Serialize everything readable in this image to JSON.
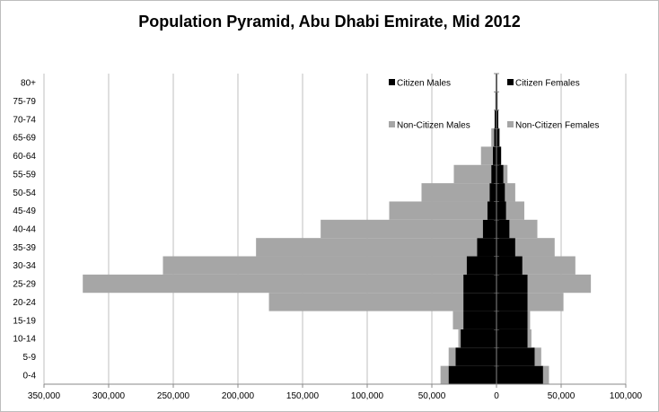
{
  "chart_data": {
    "type": "bar",
    "orientation": "horizontal-pyramid-stacked",
    "title": "Population Pyramid, Abu Dhabi Emirate, Mid 2012",
    "xlabel": "",
    "ylabel": "",
    "xlim": [
      -350000,
      100000
    ],
    "x_ticks": [
      -350000,
      -300000,
      -250000,
      -200000,
      -150000,
      -100000,
      -50000,
      0,
      50000,
      100000
    ],
    "x_tick_labels": [
      "350,000",
      "300,000",
      "250,000",
      "200,000",
      "150,000",
      "100,000",
      "50,000",
      "0",
      "50,000",
      "100,000"
    ],
    "grid": "vertical",
    "legend_position": "top-center",
    "categories": [
      "0-4",
      "5-9",
      "10-14",
      "15-19",
      "20-24",
      "25-29",
      "30-34",
      "35-39",
      "40-44",
      "45-49",
      "50-54",
      "55-59",
      "60-64",
      "65-69",
      "70-74",
      "75-79",
      "80+"
    ],
    "series": [
      {
        "name": "Citizen Males",
        "side": "left",
        "color": "#000000",
        "values": [
          37000,
          31600,
          27700,
          25600,
          25600,
          25600,
          23000,
          15000,
          10500,
          7000,
          5300,
          4000,
          2800,
          1800,
          1400,
          800,
          600
        ]
      },
      {
        "name": "Citizen Females",
        "side": "right",
        "color": "#000000",
        "values": [
          36000,
          29500,
          24000,
          24000,
          24000,
          24000,
          20000,
          14500,
          10000,
          7400,
          6500,
          5300,
          3500,
          2300,
          1400,
          800,
          600
        ]
      },
      {
        "name": "Non-Citizen Males",
        "side": "left",
        "color": "#a6a6a6",
        "values": [
          6300,
          5400,
          1800,
          8100,
          150400,
          294400,
          235000,
          171000,
          125500,
          76000,
          52700,
          29000,
          9200,
          2200,
          100,
          0,
          0
        ]
      },
      {
        "name": "Non-Citizen Females",
        "side": "right",
        "color": "#a6a6a6",
        "values": [
          4600,
          5100,
          3000,
          2000,
          27800,
          49000,
          41000,
          30500,
          21600,
          14100,
          8000,
          3200,
          300,
          200,
          0,
          0,
          0
        ]
      }
    ]
  }
}
